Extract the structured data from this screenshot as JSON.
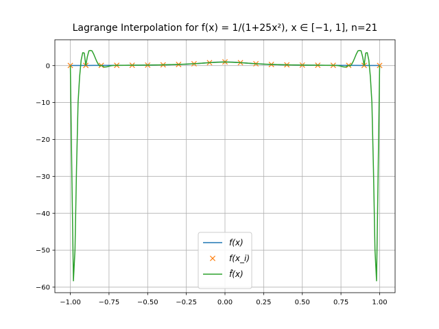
{
  "chart_data": {
    "type": "line",
    "title": "Lagrange Interpolation for f(x) = 1/(1+25x²), x ∈ [−1, 1], n=21",
    "xlabel": "",
    "ylabel": "",
    "xlim": [
      -1.1,
      1.1
    ],
    "ylim": [
      -61.5,
      7
    ],
    "grid": true,
    "legend_position": "lower center",
    "xticks": [
      -1.0,
      -0.75,
      -0.5,
      -0.25,
      0.0,
      0.25,
      0.5,
      0.75,
      1.0
    ],
    "xtick_labels": [
      "−1.00",
      "−0.75",
      "−0.50",
      "−0.25",
      "0.00",
      "0.25",
      "0.50",
      "0.75",
      "1.00"
    ],
    "yticks": [
      0,
      -10,
      -20,
      -30,
      -40,
      -50,
      -60
    ],
    "ytick_labels": [
      "0",
      "−10",
      "−20",
      "−30",
      "−40",
      "−50",
      "−60"
    ],
    "series": [
      {
        "name": "f(x)",
        "style": "line",
        "color": "#1f77b4",
        "x": [
          -1.0,
          -0.95,
          -0.9,
          -0.85,
          -0.8,
          -0.75,
          -0.7,
          -0.65,
          -0.6,
          -0.55,
          -0.5,
          -0.45,
          -0.4,
          -0.35,
          -0.3,
          -0.25,
          -0.2,
          -0.15,
          -0.1,
          -0.05,
          0.0,
          0.05,
          0.1,
          0.15,
          0.2,
          0.25,
          0.3,
          0.35,
          0.4,
          0.45,
          0.5,
          0.55,
          0.6,
          0.65,
          0.7,
          0.75,
          0.8,
          0.85,
          0.9,
          0.95,
          1.0
        ],
        "y": [
          0.038,
          0.042,
          0.047,
          0.052,
          0.059,
          0.066,
          0.075,
          0.086,
          0.1,
          0.117,
          0.138,
          0.165,
          0.2,
          0.246,
          0.308,
          0.39,
          0.5,
          0.64,
          0.8,
          0.941,
          1.0,
          0.941,
          0.8,
          0.64,
          0.5,
          0.39,
          0.308,
          0.246,
          0.2,
          0.165,
          0.138,
          0.117,
          0.1,
          0.086,
          0.075,
          0.066,
          0.059,
          0.052,
          0.047,
          0.042,
          0.038
        ]
      },
      {
        "name": "f(x_i)",
        "style": "marker",
        "marker": "x",
        "color": "#ff7f0e",
        "x": [
          -1.0,
          -0.9,
          -0.8,
          -0.7,
          -0.6,
          -0.5,
          -0.4,
          -0.3,
          -0.2,
          -0.1,
          0.0,
          0.1,
          0.2,
          0.3,
          0.4,
          0.5,
          0.6,
          0.7,
          0.8,
          0.9,
          1.0
        ],
        "y": [
          0.038,
          0.047,
          0.059,
          0.075,
          0.1,
          0.138,
          0.2,
          0.308,
          0.5,
          0.8,
          1.0,
          0.8,
          0.5,
          0.308,
          0.2,
          0.138,
          0.1,
          0.075,
          0.059,
          0.047,
          0.038
        ]
      },
      {
        "name": "f̂(x)",
        "style": "line",
        "color": "#2ca02c",
        "x": [
          -1.0,
          -0.99,
          -0.98,
          -0.97,
          -0.96,
          -0.95,
          -0.94,
          -0.93,
          -0.92,
          -0.91,
          -0.9,
          -0.89,
          -0.88,
          -0.87,
          -0.86,
          -0.85,
          -0.84,
          -0.83,
          -0.82,
          -0.81,
          -0.8,
          -0.78,
          -0.76,
          -0.74,
          -0.72,
          -0.7,
          -0.65,
          -0.6,
          -0.5,
          -0.4,
          -0.3,
          -0.2,
          -0.1,
          0.0,
          0.1,
          0.2,
          0.3,
          0.4,
          0.5,
          0.6,
          0.65,
          0.7,
          0.72,
          0.74,
          0.76,
          0.78,
          0.8,
          0.81,
          0.82,
          0.83,
          0.84,
          0.85,
          0.86,
          0.87,
          0.88,
          0.89,
          0.9,
          0.91,
          0.92,
          0.93,
          0.94,
          0.95,
          0.96,
          0.97,
          0.98,
          0.99,
          1.0
        ],
        "y": [
          0.04,
          -30,
          -58.3,
          -50,
          -28,
          -10,
          -3,
          1.5,
          3.5,
          3.4,
          0.05,
          2.4,
          4.0,
          4.1,
          4.0,
          3.2,
          2.2,
          1.2,
          0.4,
          -0.1,
          0.06,
          -0.4,
          -0.3,
          -0.05,
          0.05,
          0.07,
          0.09,
          0.1,
          0.14,
          0.2,
          0.31,
          0.5,
          0.8,
          1.0,
          0.8,
          0.5,
          0.31,
          0.2,
          0.14,
          0.1,
          0.09,
          0.07,
          0.05,
          -0.05,
          -0.3,
          -0.4,
          0.06,
          -0.1,
          0.4,
          1.2,
          2.2,
          3.2,
          4.0,
          4.1,
          4.0,
          2.4,
          0.05,
          3.4,
          3.5,
          1.5,
          -3,
          -10,
          -28,
          -50,
          -58.3,
          -30,
          0.04
        ]
      }
    ]
  }
}
